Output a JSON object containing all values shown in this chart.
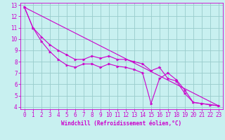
{
  "xlabel": "Windchill (Refroidissement éolien,°C)",
  "xlim": [
    -0.5,
    23.5
  ],
  "ylim": [
    3.8,
    13.2
  ],
  "xticks": [
    0,
    1,
    2,
    3,
    4,
    5,
    6,
    7,
    8,
    9,
    10,
    11,
    12,
    13,
    14,
    15,
    16,
    17,
    18,
    19,
    20,
    21,
    22,
    23
  ],
  "yticks": [
    4,
    5,
    6,
    7,
    8,
    9,
    10,
    11,
    12,
    13
  ],
  "bg_color": "#c8f0f0",
  "grid_color": "#99cccc",
  "line_color": "#cc00cc",
  "line1_x": [
    0,
    1,
    2,
    3,
    4,
    5,
    6,
    7,
    8,
    9,
    10,
    11,
    12,
    13,
    14,
    15,
    16,
    17,
    18,
    19,
    20,
    21,
    22,
    23
  ],
  "line1_y": [
    12.8,
    11.0,
    10.2,
    9.5,
    9.0,
    8.6,
    8.2,
    8.2,
    8.5,
    8.3,
    8.5,
    8.2,
    8.2,
    8.0,
    7.8,
    7.2,
    7.5,
    6.5,
    6.3,
    5.2,
    4.4,
    4.3,
    4.2,
    4.1
  ],
  "line2_x": [
    0,
    1,
    2,
    3,
    4,
    5,
    6,
    7,
    8,
    9,
    10,
    11,
    12,
    13,
    14,
    15,
    16,
    17,
    18,
    19,
    20,
    21,
    22,
    23
  ],
  "line2_y": [
    12.8,
    11.0,
    9.8,
    8.9,
    8.2,
    7.7,
    7.5,
    7.8,
    7.8,
    7.5,
    7.8,
    7.6,
    7.5,
    7.3,
    7.0,
    4.3,
    6.5,
    7.0,
    6.4,
    5.5,
    4.4,
    4.3,
    4.2,
    4.1
  ],
  "line3_x": [
    0,
    23
  ],
  "line3_y": [
    12.8,
    4.1
  ],
  "tick_fontsize": 5.5,
  "xlabel_fontsize": 5.5
}
